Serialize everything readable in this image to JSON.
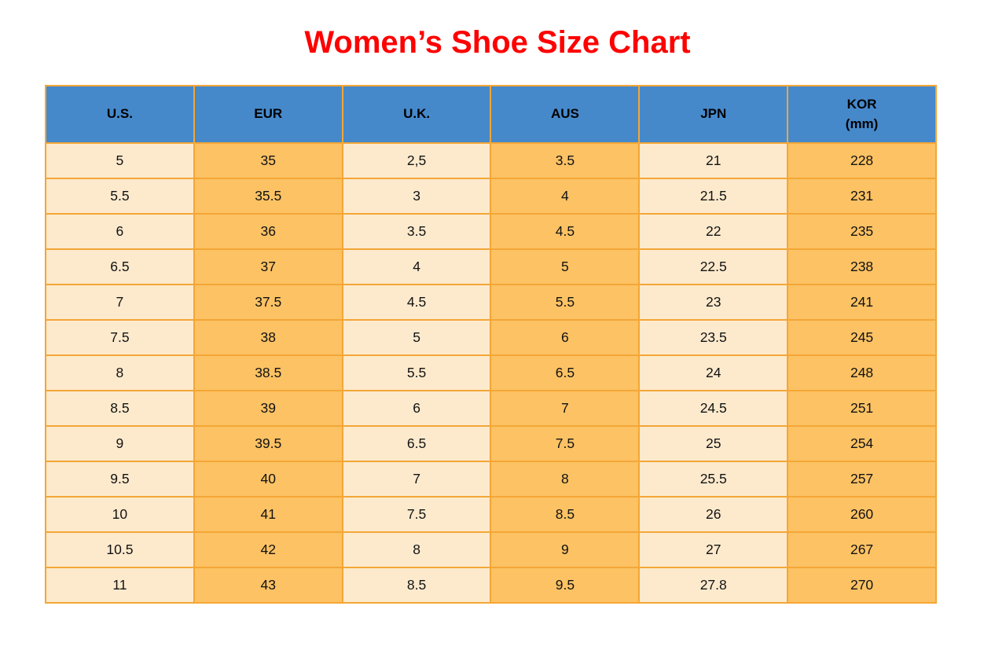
{
  "title": "Women’s Shoe Size Chart",
  "colors": {
    "title_red": "#ff0000",
    "header_blue": "#4689cb",
    "header_text": "#000000",
    "cell_cream": "#fdeacd",
    "cell_orange": "#fcc264",
    "border_orange": "#f4a636",
    "cell_text": "#121212",
    "page_background": "#ffffff"
  },
  "table": {
    "headers": [
      {
        "lines": [
          "U.S."
        ]
      },
      {
        "lines": [
          "EUR"
        ]
      },
      {
        "lines": [
          "U.K."
        ]
      },
      {
        "lines": [
          "AUS"
        ]
      },
      {
        "lines": [
          "JPN"
        ]
      },
      {
        "lines": [
          "KOR",
          "(mm)"
        ]
      }
    ]
  },
  "chart_data": {
    "type": "table",
    "title": "Women’s Shoe Size Chart",
    "columns": [
      "U.S.",
      "EUR",
      "U.K.",
      "AUS",
      "JPN",
      "KOR (mm)"
    ],
    "column_styles": [
      "cream",
      "orange",
      "cream",
      "orange",
      "cream",
      "orange"
    ],
    "header_style": "blue",
    "rows": [
      [
        "5",
        "35",
        "2,5",
        "3.5",
        "21",
        "228"
      ],
      [
        "5.5",
        "35.5",
        "3",
        "4",
        "21.5",
        "231"
      ],
      [
        "6",
        "36",
        "3.5",
        "4.5",
        "22",
        "235"
      ],
      [
        "6.5",
        "37",
        "4",
        "5",
        "22.5",
        "238"
      ],
      [
        "7",
        "37.5",
        "4.5",
        "5.5",
        "23",
        "241"
      ],
      [
        "7.5",
        "38",
        "5",
        "6",
        "23.5",
        "245"
      ],
      [
        "8",
        "38.5",
        "5.5",
        "6.5",
        "24",
        "248"
      ],
      [
        "8.5",
        "39",
        "6",
        "7",
        "24.5",
        "251"
      ],
      [
        "9",
        "39.5",
        "6.5",
        "7.5",
        "25",
        "254"
      ],
      [
        "9.5",
        "40",
        "7",
        "8",
        "25.5",
        "257"
      ],
      [
        "10",
        "41",
        "7.5",
        "8.5",
        "26",
        "260"
      ],
      [
        "10.5",
        "42",
        "8",
        "9",
        "27",
        "267"
      ],
      [
        "11",
        "43",
        "8.5",
        "9.5",
        "27.8",
        "270"
      ]
    ]
  }
}
